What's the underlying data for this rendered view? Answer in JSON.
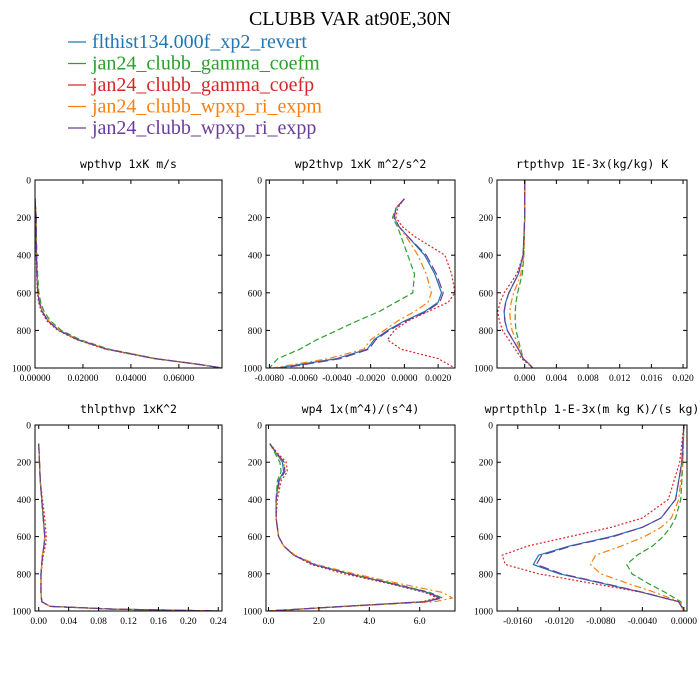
{
  "figure": {
    "title": "CLUBB VAR at90E,30N",
    "legend": [
      {
        "label": "flthist134.000f_xp2_revert",
        "color": "#1f77b4",
        "dash": "solid"
      },
      {
        "label": "jan24_clubb_gamma_coefm",
        "color": "#2ca02c",
        "dash": "dash"
      },
      {
        "label": "jan24_clubb_gamma_coefp",
        "color": "#d62728",
        "dash": "dot"
      },
      {
        "label": "jan24_clubb_wpxp_ri_expm",
        "color": "#ff7f0e",
        "dash": "dashdot"
      },
      {
        "label": "jan24_clubb_wpxp_ri_expp",
        "color": "#6a3d9a",
        "dash": "longdash"
      }
    ]
  },
  "chart_data": [
    {
      "type": "line",
      "title": "wpthvp   1xK m/s",
      "xlim": [
        0,
        0.078
      ],
      "ylim": [
        1000,
        0
      ],
      "xticks": [
        "0.00000",
        "0.02000",
        "0.04000",
        "0.06000"
      ],
      "xtick_values": [
        0,
        0.02,
        0.04,
        0.06
      ],
      "yticks": [
        "0",
        "200",
        "400",
        "600",
        "800",
        "1000"
      ],
      "ytick_values": [
        0,
        200,
        400,
        600,
        800,
        1000
      ],
      "y": [
        100,
        200,
        300,
        400,
        500,
        600,
        650,
        700,
        750,
        800,
        850,
        900,
        950,
        980,
        1000
      ],
      "series": [
        {
          "values": [
            0.0,
            0.0005,
            0.0005,
            0.0006,
            0.0008,
            0.0012,
            0.0018,
            0.003,
            0.0055,
            0.01,
            0.018,
            0.03,
            0.05,
            0.068,
            0.078
          ]
        },
        {
          "values": [
            0.0,
            0.0005,
            0.0006,
            0.0008,
            0.0011,
            0.0016,
            0.0024,
            0.0038,
            0.0065,
            0.011,
            0.019,
            0.031,
            0.0505,
            0.068,
            0.078
          ]
        },
        {
          "values": [
            0.0,
            0.0004,
            0.0004,
            0.0005,
            0.0007,
            0.001,
            0.0015,
            0.0026,
            0.005,
            0.0095,
            0.0175,
            0.0295,
            0.0495,
            0.0675,
            0.078
          ]
        },
        {
          "values": [
            0.0,
            0.0005,
            0.0005,
            0.0007,
            0.0009,
            0.0013,
            0.002,
            0.0032,
            0.0058,
            0.0103,
            0.0183,
            0.0303,
            0.0502,
            0.068,
            0.078
          ]
        },
        {
          "values": [
            0.0,
            0.0005,
            0.0005,
            0.0006,
            0.0008,
            0.0012,
            0.0018,
            0.003,
            0.0055,
            0.01,
            0.018,
            0.03,
            0.05,
            0.068,
            0.078
          ]
        }
      ]
    },
    {
      "type": "line",
      "title": "wp2thvp   1xK m^2/s^2",
      "xlim": [
        -0.0082,
        0.003
      ],
      "ylim": [
        1000,
        0
      ],
      "xticks": [
        "-0.0080",
        "-0.0060",
        "-0.0040",
        "-0.0020",
        "0.0000",
        "0.0020"
      ],
      "xtick_values": [
        -0.008,
        -0.006,
        -0.004,
        -0.002,
        0,
        0.002
      ],
      "yticks": [
        "0",
        "200",
        "400",
        "600",
        "800",
        "1000"
      ],
      "ytick_values": [
        0,
        200,
        400,
        600,
        800,
        1000
      ],
      "y": [
        100,
        150,
        200,
        250,
        300,
        400,
        500,
        600,
        650,
        700,
        750,
        800,
        850,
        900,
        950,
        1000
      ],
      "series": [
        {
          "values": [
            0.0,
            -0.0005,
            -0.0006,
            -0.0003,
            0.0002,
            0.0012,
            0.0018,
            0.0022,
            0.002,
            0.0012,
            0.0,
            -0.001,
            -0.0018,
            -0.0022,
            -0.004,
            -0.0075
          ]
        },
        {
          "values": [
            0.0,
            -0.0005,
            -0.0007,
            -0.0004,
            -0.0002,
            0.0002,
            0.0006,
            0.0005,
            -0.0005,
            -0.0015,
            -0.0028,
            -0.004,
            -0.0052,
            -0.0062,
            -0.0075,
            -0.008
          ]
        },
        {
          "values": [
            0.0,
            -0.0004,
            -0.0005,
            -0.0001,
            0.0006,
            0.0024,
            0.0028,
            0.003,
            0.0026,
            0.0014,
            0.0002,
            -0.0006,
            -0.001,
            -0.0002,
            0.002,
            0.003
          ]
        },
        {
          "values": [
            0.0,
            -0.0005,
            -0.0006,
            -0.0003,
            0.0001,
            0.0008,
            0.0013,
            0.0016,
            0.0014,
            0.0006,
            -0.0004,
            -0.0012,
            -0.002,
            -0.0024,
            -0.0045,
            -0.0078
          ]
        },
        {
          "values": [
            0.0,
            -0.0005,
            -0.0006,
            -0.0003,
            0.0002,
            0.0013,
            0.0019,
            0.0023,
            0.0021,
            0.0013,
            0.0001,
            -0.0009,
            -0.0017,
            -0.0021,
            -0.0038,
            -0.0072
          ]
        }
      ]
    },
    {
      "type": "line",
      "title": "rtpthvp   1E-3x(kg/kg) K",
      "xlim": [
        -0.0035,
        0.0205
      ],
      "ylim": [
        1000,
        0
      ],
      "xticks": [
        "0.000",
        "0.004",
        "0.008",
        "0.012",
        "0.016",
        "0.020"
      ],
      "xtick_values": [
        0,
        0.004,
        0.008,
        0.012,
        0.016,
        0.02
      ],
      "yticks": [
        "0",
        "200",
        "400",
        "600",
        "800",
        "1000"
      ],
      "ytick_values": [
        0,
        200,
        400,
        600,
        800,
        1000
      ],
      "y": [
        0,
        200,
        400,
        500,
        550,
        600,
        650,
        700,
        750,
        800,
        850,
        900,
        950,
        980,
        1000
      ],
      "series": [
        {
          "values": [
            0.0,
            0.0,
            -0.0002,
            -0.0008,
            -0.0014,
            -0.002,
            -0.0024,
            -0.0026,
            -0.0025,
            -0.0022,
            -0.0015,
            -0.0008,
            -0.0002,
            0.0006,
            0.001
          ]
        },
        {
          "values": [
            0.0,
            0.0,
            -0.0001,
            -0.0003,
            -0.0006,
            -0.0009,
            -0.0011,
            -0.0012,
            -0.0012,
            -0.0011,
            -0.0008,
            -0.0005,
            -0.0002,
            0.0005,
            0.001
          ]
        },
        {
          "values": [
            0.0,
            0.0,
            -0.0002,
            -0.001,
            -0.0018,
            -0.0026,
            -0.0031,
            -0.0034,
            -0.0032,
            -0.0028,
            -0.002,
            -0.0012,
            -0.0004,
            0.0005,
            0.001
          ]
        },
        {
          "values": [
            0.0,
            0.0,
            -0.0001,
            -0.0005,
            -0.0009,
            -0.0014,
            -0.0017,
            -0.0019,
            -0.0018,
            -0.0016,
            -0.0011,
            -0.0006,
            -0.0002,
            0.0005,
            0.001
          ]
        },
        {
          "values": [
            0.0,
            0.0,
            -0.0002,
            -0.0008,
            -0.0014,
            -0.002,
            -0.0024,
            -0.0026,
            -0.0025,
            -0.0022,
            -0.0015,
            -0.0008,
            -0.0002,
            0.0006,
            0.001
          ]
        }
      ]
    },
    {
      "type": "line",
      "title": "thlpthvp   1xK^2",
      "xlim": [
        -0.005,
        0.245
      ],
      "ylim": [
        1000,
        0
      ],
      "xticks": [
        "0.00",
        "0.04",
        "0.08",
        "0.12",
        "0.16",
        "0.20",
        "0.24"
      ],
      "xtick_values": [
        0,
        0.04,
        0.08,
        0.12,
        0.16,
        0.2,
        0.24
      ],
      "yticks": [
        "0",
        "200",
        "400",
        "600",
        "800",
        "1000"
      ],
      "ytick_values": [
        0,
        200,
        400,
        600,
        800,
        1000
      ],
      "y": [
        100,
        300,
        400,
        500,
        550,
        600,
        650,
        700,
        800,
        900,
        950,
        975,
        990,
        1000
      ],
      "series": [
        {
          "values": [
            0.0,
            0.002,
            0.004,
            0.006,
            0.007,
            0.008,
            0.007,
            0.005,
            0.003,
            0.003,
            0.004,
            0.015,
            0.1,
            0.24
          ]
        },
        {
          "values": [
            0.0,
            0.002,
            0.004,
            0.006,
            0.007,
            0.008,
            0.007,
            0.005,
            0.003,
            0.003,
            0.004,
            0.015,
            0.1,
            0.24
          ]
        },
        {
          "values": [
            0.0,
            0.002,
            0.005,
            0.008,
            0.009,
            0.01,
            0.009,
            0.006,
            0.003,
            0.003,
            0.004,
            0.015,
            0.1,
            0.24
          ]
        },
        {
          "values": [
            0.0,
            0.002,
            0.004,
            0.006,
            0.007,
            0.008,
            0.007,
            0.005,
            0.003,
            0.003,
            0.004,
            0.015,
            0.1,
            0.24
          ]
        },
        {
          "values": [
            0.0,
            0.002,
            0.004,
            0.006,
            0.007,
            0.008,
            0.007,
            0.005,
            0.003,
            0.003,
            0.004,
            0.015,
            0.1,
            0.24
          ]
        }
      ]
    },
    {
      "type": "line",
      "title": "wp4   1x(m^4)/(s^4)",
      "xlim": [
        -0.1,
        7.4
      ],
      "ylim": [
        1000,
        0
      ],
      "xticks": [
        "0.0",
        "2.0",
        "4.0",
        "6.0"
      ],
      "xtick_values": [
        0,
        2,
        4,
        6
      ],
      "yticks": [
        "0",
        "200",
        "400",
        "600",
        "800",
        "1000"
      ],
      "ytick_values": [
        0,
        200,
        400,
        600,
        800,
        1000
      ],
      "y": [
        100,
        150,
        200,
        250,
        300,
        400,
        500,
        600,
        650,
        700,
        750,
        800,
        850,
        900,
        930,
        950,
        975,
        1000
      ],
      "series": [
        {
          "values": [
            0.05,
            0.3,
            0.55,
            0.6,
            0.4,
            0.3,
            0.3,
            0.4,
            0.6,
            1.0,
            1.8,
            3.2,
            4.8,
            6.3,
            6.8,
            6.2,
            3.0,
            0.0
          ]
        },
        {
          "values": [
            0.05,
            0.25,
            0.45,
            0.5,
            0.35,
            0.3,
            0.3,
            0.4,
            0.6,
            1.0,
            1.8,
            3.2,
            4.9,
            6.4,
            6.9,
            6.3,
            3.0,
            0.0
          ]
        },
        {
          "values": [
            0.05,
            0.35,
            0.7,
            0.75,
            0.5,
            0.35,
            0.3,
            0.4,
            0.6,
            1.0,
            1.7,
            3.0,
            4.7,
            6.2,
            6.7,
            6.1,
            3.0,
            0.0
          ]
        },
        {
          "values": [
            0.05,
            0.3,
            0.6,
            0.65,
            0.45,
            0.3,
            0.3,
            0.4,
            0.6,
            1.05,
            1.9,
            3.4,
            5.1,
            6.9,
            7.3,
            6.6,
            3.2,
            0.0
          ]
        },
        {
          "values": [
            0.05,
            0.32,
            0.62,
            0.65,
            0.42,
            0.3,
            0.3,
            0.4,
            0.6,
            1.0,
            1.8,
            3.2,
            4.8,
            6.35,
            6.85,
            6.25,
            3.0,
            0.0
          ]
        }
      ]
    },
    {
      "type": "line",
      "title": "wprtpthlp   1-E-3x(m kg K)/(s kg)",
      "xlim": [
        -0.018,
        0.0003
      ],
      "ylim": [
        1000,
        0
      ],
      "xticks": [
        "-0.0160",
        "-0.0120",
        "-0.0080",
        "-0.0040",
        "0.0000"
      ],
      "xtick_values": [
        -0.016,
        -0.012,
        -0.008,
        -0.004,
        0
      ],
      "yticks": [
        "0",
        "200",
        "400",
        "600",
        "800",
        "1000"
      ],
      "ytick_values": [
        0,
        200,
        400,
        600,
        800,
        1000
      ],
      "y": [
        0,
        200,
        400,
        500,
        550,
        600,
        650,
        700,
        750,
        800,
        850,
        900,
        950,
        1000
      ],
      "series": [
        {
          "values": [
            0.0,
            -0.0002,
            -0.0008,
            -0.0022,
            -0.004,
            -0.007,
            -0.011,
            -0.014,
            -0.0145,
            -0.012,
            -0.008,
            -0.004,
            -0.0005,
            0.0
          ]
        },
        {
          "values": [
            0.0,
            -0.0001,
            -0.0003,
            -0.0008,
            -0.0013,
            -0.002,
            -0.003,
            -0.0045,
            -0.0055,
            -0.005,
            -0.0035,
            -0.0018,
            -0.0003,
            0.0
          ]
        },
        {
          "values": [
            0.0,
            -0.0004,
            -0.0015,
            -0.004,
            -0.007,
            -0.011,
            -0.015,
            -0.0175,
            -0.0172,
            -0.014,
            -0.009,
            -0.004,
            -0.0005,
            0.0
          ]
        },
        {
          "values": [
            0.0,
            -0.0001,
            -0.0005,
            -0.0012,
            -0.0022,
            -0.0038,
            -0.006,
            -0.0085,
            -0.009,
            -0.008,
            -0.0055,
            -0.0028,
            -0.0004,
            0.0
          ]
        },
        {
          "values": [
            0.0,
            -0.0002,
            -0.0008,
            -0.0022,
            -0.004,
            -0.0068,
            -0.0108,
            -0.0137,
            -0.0142,
            -0.0118,
            -0.0078,
            -0.0039,
            -0.0005,
            0.0
          ]
        }
      ]
    }
  ]
}
